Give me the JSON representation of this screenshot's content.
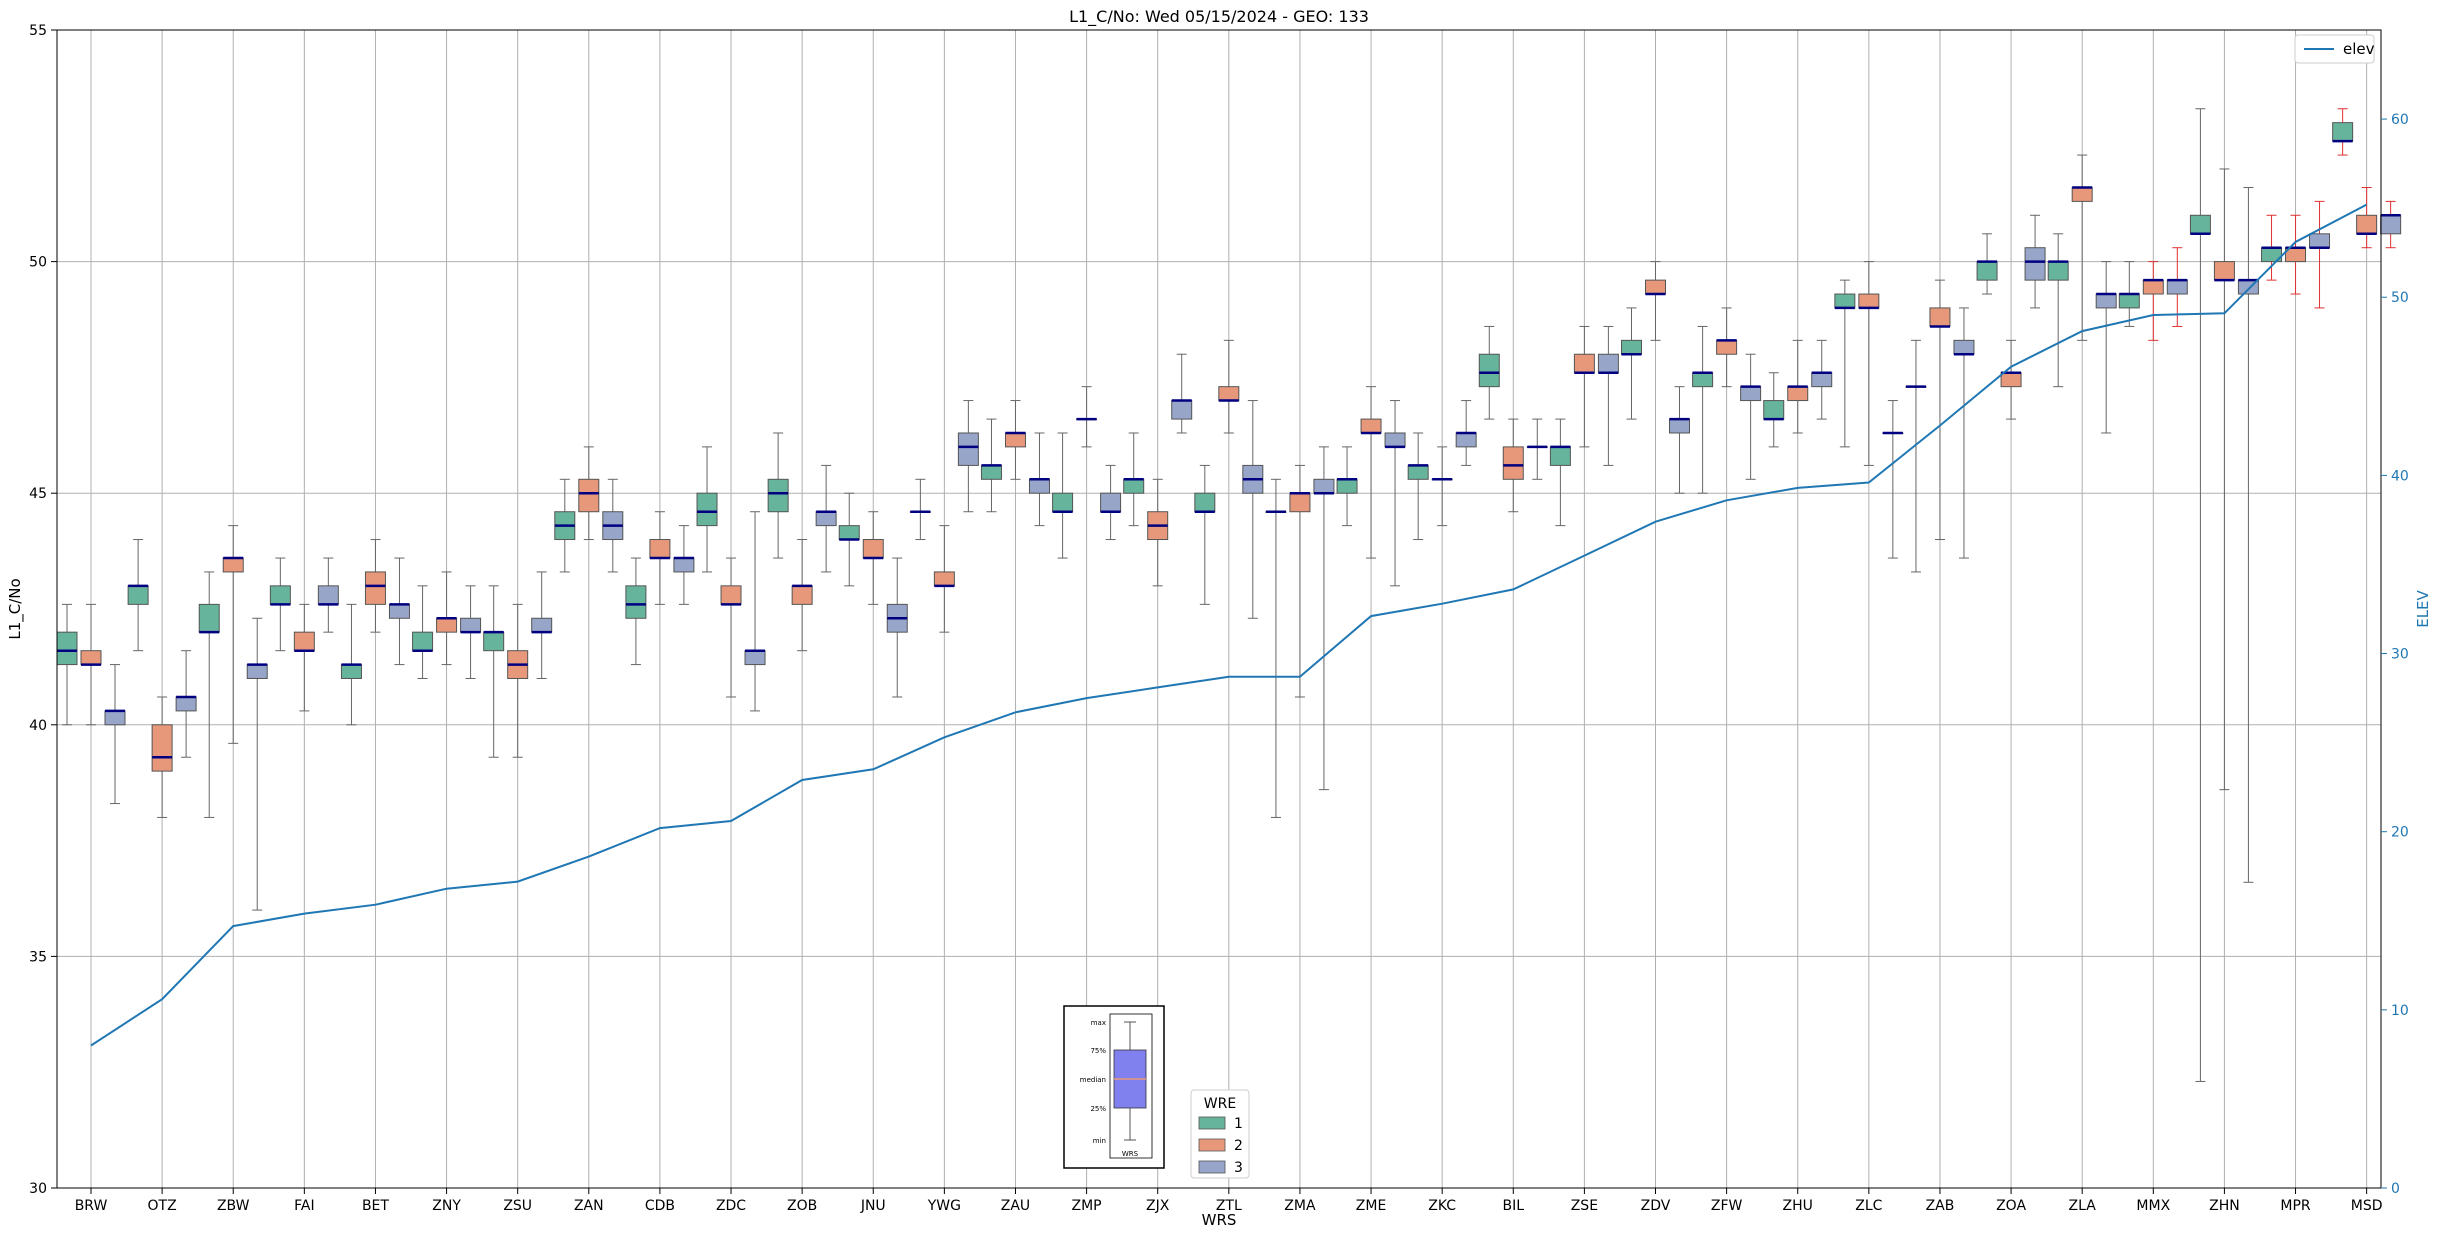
{
  "chart_data": {
    "type": "box",
    "title": "L1_C/No: Wed 05/15/2024 - GEO: 133",
    "xlabel": "WRS",
    "ylabel": "L1_C/No",
    "y2label": "ELEV",
    "ylim": [
      30,
      55
    ],
    "y2lim": [
      0,
      65
    ],
    "yticks": [
      "30",
      "35",
      "40",
      "45",
      "50",
      "55"
    ],
    "y2ticks": [
      "0",
      "10",
      "20",
      "30",
      "40",
      "50",
      "60"
    ],
    "grid": true,
    "categories": [
      "BRW",
      "OTZ",
      "ZBW",
      "FAI",
      "BET",
      "ZNY",
      "ZSU",
      "ZAN",
      "CDB",
      "ZDC",
      "ZOB",
      "JNU",
      "YWG",
      "ZAU",
      "ZMP",
      "ZJX",
      "ZTL",
      "ZMA",
      "ZME",
      "ZKC",
      "BIL",
      "ZSE",
      "ZDV",
      "ZFW",
      "ZHU",
      "ZLC",
      "ZAB",
      "ZOA",
      "ZLA",
      "MMX",
      "ZHN",
      "MPR",
      "MSD"
    ],
    "legend_title": "WRE",
    "legend_position": "bottom-center",
    "series": [
      {
        "name": "1",
        "color": "#66b49b"
      },
      {
        "name": "2",
        "color": "#e8987a"
      },
      {
        "name": "3",
        "color": "#97a5c9"
      }
    ],
    "boxes": [
      {
        "wrs": "BRW",
        "wre": 1,
        "min": 40.0,
        "q1": 41.3,
        "median": 41.6,
        "q3": 42.0,
        "max": 42.6
      },
      {
        "wrs": "BRW",
        "wre": 2,
        "min": 40.0,
        "q1": 41.3,
        "median": 41.3,
        "q3": 41.6,
        "max": 42.6
      },
      {
        "wrs": "BRW",
        "wre": 3,
        "min": 38.3,
        "q1": 40.0,
        "median": 40.3,
        "q3": 40.3,
        "max": 41.3
      },
      {
        "wrs": "OTZ",
        "wre": 1,
        "min": 41.6,
        "q1": 42.6,
        "median": 43.0,
        "q3": 43.0,
        "max": 44.0
      },
      {
        "wrs": "OTZ",
        "wre": 2,
        "min": 38.0,
        "q1": 39.0,
        "median": 39.3,
        "q3": 40.0,
        "max": 40.6
      },
      {
        "wrs": "OTZ",
        "wre": 3,
        "min": 39.3,
        "q1": 40.3,
        "median": 40.6,
        "q3": 40.6,
        "max": 41.6
      },
      {
        "wrs": "ZBW",
        "wre": 1,
        "min": 38.0,
        "q1": 42.0,
        "median": 42.0,
        "q3": 42.6,
        "max": 43.3
      },
      {
        "wrs": "ZBW",
        "wre": 2,
        "min": 39.6,
        "q1": 43.3,
        "median": 43.6,
        "q3": 43.6,
        "max": 44.3
      },
      {
        "wrs": "ZBW",
        "wre": 3,
        "min": 36.0,
        "q1": 41.0,
        "median": 41.3,
        "q3": 41.3,
        "max": 42.3
      },
      {
        "wrs": "FAI",
        "wre": 1,
        "min": 41.6,
        "q1": 42.6,
        "median": 42.6,
        "q3": 43.0,
        "max": 43.6
      },
      {
        "wrs": "FAI",
        "wre": 2,
        "min": 40.3,
        "q1": 41.6,
        "median": 41.6,
        "q3": 42.0,
        "max": 42.6
      },
      {
        "wrs": "FAI",
        "wre": 3,
        "min": 42.0,
        "q1": 42.6,
        "median": 42.6,
        "q3": 43.0,
        "max": 43.6
      },
      {
        "wrs": "BET",
        "wre": 1,
        "min": 40.0,
        "q1": 41.0,
        "median": 41.3,
        "q3": 41.3,
        "max": 42.6
      },
      {
        "wrs": "BET",
        "wre": 2,
        "min": 42.0,
        "q1": 42.6,
        "median": 43.0,
        "q3": 43.3,
        "max": 44.0
      },
      {
        "wrs": "BET",
        "wre": 3,
        "min": 41.3,
        "q1": 42.3,
        "median": 42.6,
        "q3": 42.6,
        "max": 43.6
      },
      {
        "wrs": "ZNY",
        "wre": 1,
        "min": 41.0,
        "q1": 41.6,
        "median": 41.6,
        "q3": 42.0,
        "max": 43.0
      },
      {
        "wrs": "ZNY",
        "wre": 2,
        "min": 41.3,
        "q1": 42.0,
        "median": 42.3,
        "q3": 42.3,
        "max": 43.3
      },
      {
        "wrs": "ZNY",
        "wre": 3,
        "min": 41.0,
        "q1": 42.0,
        "median": 42.0,
        "q3": 42.3,
        "max": 43.0
      },
      {
        "wrs": "ZSU",
        "wre": 1,
        "min": 39.3,
        "q1": 41.6,
        "median": 42.0,
        "q3": 42.0,
        "max": 43.0
      },
      {
        "wrs": "ZSU",
        "wre": 2,
        "min": 39.3,
        "q1": 41.0,
        "median": 41.3,
        "q3": 41.6,
        "max": 42.6
      },
      {
        "wrs": "ZSU",
        "wre": 3,
        "min": 41.0,
        "q1": 42.0,
        "median": 42.0,
        "q3": 42.3,
        "max": 43.3
      },
      {
        "wrs": "ZAN",
        "wre": 1,
        "min": 43.3,
        "q1": 44.0,
        "median": 44.3,
        "q3": 44.6,
        "max": 45.3
      },
      {
        "wrs": "ZAN",
        "wre": 2,
        "min": 44.0,
        "q1": 44.6,
        "median": 45.0,
        "q3": 45.3,
        "max": 46.0
      },
      {
        "wrs": "ZAN",
        "wre": 3,
        "min": 43.3,
        "q1": 44.0,
        "median": 44.3,
        "q3": 44.6,
        "max": 45.3
      },
      {
        "wrs": "CDB",
        "wre": 1,
        "min": 41.3,
        "q1": 42.3,
        "median": 42.6,
        "q3": 43.0,
        "max": 43.6
      },
      {
        "wrs": "CDB",
        "wre": 2,
        "min": 42.6,
        "q1": 43.6,
        "median": 43.6,
        "q3": 44.0,
        "max": 44.6
      },
      {
        "wrs": "CDB",
        "wre": 3,
        "min": 42.6,
        "q1": 43.3,
        "median": 43.6,
        "q3": 43.6,
        "max": 44.3
      },
      {
        "wrs": "ZDC",
        "wre": 1,
        "min": 43.3,
        "q1": 44.3,
        "median": 44.6,
        "q3": 45.0,
        "max": 46.0
      },
      {
        "wrs": "ZDC",
        "wre": 2,
        "min": 40.6,
        "q1": 42.6,
        "median": 42.6,
        "q3": 43.0,
        "max": 43.6
      },
      {
        "wrs": "ZDC",
        "wre": 3,
        "min": 40.3,
        "q1": 41.3,
        "median": 41.6,
        "q3": 41.6,
        "max": 44.6
      },
      {
        "wrs": "ZOB",
        "wre": 1,
        "min": 43.6,
        "q1": 44.6,
        "median": 45.0,
        "q3": 45.3,
        "max": 46.3
      },
      {
        "wrs": "ZOB",
        "wre": 2,
        "min": 41.6,
        "q1": 42.6,
        "median": 43.0,
        "q3": 43.0,
        "max": 44.0
      },
      {
        "wrs": "ZOB",
        "wre": 3,
        "min": 43.3,
        "q1": 44.3,
        "median": 44.6,
        "q3": 44.6,
        "max": 45.6
      },
      {
        "wrs": "JNU",
        "wre": 1,
        "min": 43.0,
        "q1": 44.0,
        "median": 44.0,
        "q3": 44.3,
        "max": 45.0
      },
      {
        "wrs": "JNU",
        "wre": 2,
        "min": 42.6,
        "q1": 43.6,
        "median": 43.6,
        "q3": 44.0,
        "max": 44.6
      },
      {
        "wrs": "JNU",
        "wre": 3,
        "min": 40.6,
        "q1": 42.0,
        "median": 42.3,
        "q3": 42.6,
        "max": 43.6
      },
      {
        "wrs": "YWG",
        "wre": 1,
        "min": 44.0,
        "q1": 44.6,
        "median": 44.6,
        "q3": 44.6,
        "max": 45.3
      },
      {
        "wrs": "YWG",
        "wre": 2,
        "min": 42.0,
        "q1": 43.0,
        "median": 43.0,
        "q3": 43.3,
        "max": 44.3
      },
      {
        "wrs": "YWG",
        "wre": 3,
        "min": 44.6,
        "q1": 45.6,
        "median": 46.0,
        "q3": 46.3,
        "max": 47.0
      },
      {
        "wrs": "ZAU",
        "wre": 1,
        "min": 44.6,
        "q1": 45.3,
        "median": 45.6,
        "q3": 45.6,
        "max": 46.6
      },
      {
        "wrs": "ZAU",
        "wre": 2,
        "min": 45.3,
        "q1": 46.0,
        "median": 46.3,
        "q3": 46.3,
        "max": 47.0
      },
      {
        "wrs": "ZAU",
        "wre": 3,
        "min": 44.3,
        "q1": 45.0,
        "median": 45.3,
        "q3": 45.3,
        "max": 46.3
      },
      {
        "wrs": "ZMP",
        "wre": 1,
        "min": 43.6,
        "q1": 44.6,
        "median": 44.6,
        "q3": 45.0,
        "max": 46.3
      },
      {
        "wrs": "ZMP",
        "wre": 2,
        "min": 46.0,
        "q1": 46.6,
        "median": 46.6,
        "q3": 46.6,
        "max": 47.3
      },
      {
        "wrs": "ZMP",
        "wre": 3,
        "min": 44.0,
        "q1": 44.6,
        "median": 44.6,
        "q3": 45.0,
        "max": 45.6
      },
      {
        "wrs": "ZJX",
        "wre": 1,
        "min": 44.3,
        "q1": 45.0,
        "median": 45.3,
        "q3": 45.3,
        "max": 46.3
      },
      {
        "wrs": "ZJX",
        "wre": 2,
        "min": 43.0,
        "q1": 44.0,
        "median": 44.3,
        "q3": 44.6,
        "max": 45.3
      },
      {
        "wrs": "ZJX",
        "wre": 3,
        "min": 46.3,
        "q1": 46.6,
        "median": 47.0,
        "q3": 47.0,
        "max": 48.0
      },
      {
        "wrs": "ZTL",
        "wre": 1,
        "min": 42.6,
        "q1": 44.6,
        "median": 44.6,
        "q3": 45.0,
        "max": 45.6
      },
      {
        "wrs": "ZTL",
        "wre": 2,
        "min": 46.3,
        "q1": 47.0,
        "median": 47.0,
        "q3": 47.3,
        "max": 48.3
      },
      {
        "wrs": "ZTL",
        "wre": 3,
        "min": 42.3,
        "q1": 45.0,
        "median": 45.3,
        "q3": 45.6,
        "max": 47.0
      },
      {
        "wrs": "ZMA",
        "wre": 1,
        "min": 38.0,
        "q1": 44.6,
        "median": 44.6,
        "q3": 44.6,
        "max": 45.3
      },
      {
        "wrs": "ZMA",
        "wre": 2,
        "min": 40.6,
        "q1": 44.6,
        "median": 45.0,
        "q3": 45.0,
        "max": 45.6
      },
      {
        "wrs": "ZMA",
        "wre": 3,
        "min": 38.6,
        "q1": 45.0,
        "median": 45.0,
        "q3": 45.3,
        "max": 46.0
      },
      {
        "wrs": "ZME",
        "wre": 1,
        "min": 44.3,
        "q1": 45.0,
        "median": 45.3,
        "q3": 45.3,
        "max": 46.0
      },
      {
        "wrs": "ZME",
        "wre": 2,
        "min": 43.6,
        "q1": 46.3,
        "median": 46.3,
        "q3": 46.6,
        "max": 47.3
      },
      {
        "wrs": "ZME",
        "wre": 3,
        "min": 43.0,
        "q1": 46.0,
        "median": 46.0,
        "q3": 46.3,
        "max": 47.0
      },
      {
        "wrs": "ZKC",
        "wre": 1,
        "min": 44.0,
        "q1": 45.3,
        "median": 45.6,
        "q3": 45.6,
        "max": 46.3
      },
      {
        "wrs": "ZKC",
        "wre": 2,
        "min": 44.3,
        "q1": 45.3,
        "median": 45.3,
        "q3": 45.3,
        "max": 46.0
      },
      {
        "wrs": "ZKC",
        "wre": 3,
        "min": 45.6,
        "q1": 46.0,
        "median": 46.3,
        "q3": 46.3,
        "max": 47.0
      },
      {
        "wrs": "BIL",
        "wre": 1,
        "min": 46.6,
        "q1": 47.3,
        "median": 47.6,
        "q3": 48.0,
        "max": 48.6
      },
      {
        "wrs": "BIL",
        "wre": 2,
        "min": 44.6,
        "q1": 45.3,
        "median": 45.6,
        "q3": 46.0,
        "max": 46.6
      },
      {
        "wrs": "BIL",
        "wre": 3,
        "min": 45.3,
        "q1": 46.0,
        "median": 46.0,
        "q3": 46.0,
        "max": 46.6
      },
      {
        "wrs": "ZSE",
        "wre": 1,
        "min": 44.3,
        "q1": 45.6,
        "median": 46.0,
        "q3": 46.0,
        "max": 46.6
      },
      {
        "wrs": "ZSE",
        "wre": 2,
        "min": 46.0,
        "q1": 47.6,
        "median": 47.6,
        "q3": 48.0,
        "max": 48.6
      },
      {
        "wrs": "ZSE",
        "wre": 3,
        "min": 45.6,
        "q1": 47.6,
        "median": 47.6,
        "q3": 48.0,
        "max": 48.6
      },
      {
        "wrs": "ZDV",
        "wre": 1,
        "min": 46.6,
        "q1": 48.0,
        "median": 48.0,
        "q3": 48.3,
        "max": 49.0
      },
      {
        "wrs": "ZDV",
        "wre": 2,
        "min": 48.3,
        "q1": 49.3,
        "median": 49.3,
        "q3": 49.6,
        "max": 50.0
      },
      {
        "wrs": "ZDV",
        "wre": 3,
        "min": 45.0,
        "q1": 46.3,
        "median": 46.6,
        "q3": 46.6,
        "max": 47.3
      },
      {
        "wrs": "ZFW",
        "wre": 1,
        "min": 45.0,
        "q1": 47.3,
        "median": 47.6,
        "q3": 47.6,
        "max": 48.6
      },
      {
        "wrs": "ZFW",
        "wre": 2,
        "min": 47.3,
        "q1": 48.0,
        "median": 48.3,
        "q3": 48.3,
        "max": 49.0
      },
      {
        "wrs": "ZFW",
        "wre": 3,
        "min": 45.3,
        "q1": 47.0,
        "median": 47.3,
        "q3": 47.3,
        "max": 48.0
      },
      {
        "wrs": "ZHU",
        "wre": 1,
        "min": 46.0,
        "q1": 46.6,
        "median": 46.6,
        "q3": 47.0,
        "max": 47.6
      },
      {
        "wrs": "ZHU",
        "wre": 2,
        "min": 46.3,
        "q1": 47.0,
        "median": 47.3,
        "q3": 47.3,
        "max": 48.3
      },
      {
        "wrs": "ZHU",
        "wre": 3,
        "min": 46.6,
        "q1": 47.3,
        "median": 47.6,
        "q3": 47.6,
        "max": 48.3
      },
      {
        "wrs": "ZLC",
        "wre": 1,
        "min": 46.0,
        "q1": 49.0,
        "median": 49.0,
        "q3": 49.3,
        "max": 49.6
      },
      {
        "wrs": "ZLC",
        "wre": 2,
        "min": 45.6,
        "q1": 49.0,
        "median": 49.0,
        "q3": 49.3,
        "max": 50.0
      },
      {
        "wrs": "ZLC",
        "wre": 3,
        "min": 43.6,
        "q1": 46.3,
        "median": 46.3,
        "q3": 46.3,
        "max": 47.0
      },
      {
        "wrs": "ZAB",
        "wre": 1,
        "min": 43.3,
        "q1": 47.3,
        "median": 47.3,
        "q3": 47.3,
        "max": 48.3
      },
      {
        "wrs": "ZAB",
        "wre": 2,
        "min": 44.0,
        "q1": 48.6,
        "median": 48.6,
        "q3": 49.0,
        "max": 49.6
      },
      {
        "wrs": "ZAB",
        "wre": 3,
        "min": 43.6,
        "q1": 48.0,
        "median": 48.0,
        "q3": 48.3,
        "max": 49.0
      },
      {
        "wrs": "ZOA",
        "wre": 1,
        "min": 49.3,
        "q1": 49.6,
        "median": 50.0,
        "q3": 50.0,
        "max": 50.6
      },
      {
        "wrs": "ZOA",
        "wre": 2,
        "min": 46.6,
        "q1": 47.3,
        "median": 47.6,
        "q3": 47.6,
        "max": 48.3
      },
      {
        "wrs": "ZOA",
        "wre": 3,
        "min": 49.0,
        "q1": 49.6,
        "median": 50.0,
        "q3": 50.3,
        "max": 51.0
      },
      {
        "wrs": "ZLA",
        "wre": 1,
        "min": 47.3,
        "q1": 49.6,
        "median": 50.0,
        "q3": 50.0,
        "max": 50.6
      },
      {
        "wrs": "ZLA",
        "wre": 2,
        "min": 48.3,
        "q1": 51.3,
        "median": 51.6,
        "q3": 51.6,
        "max": 52.3
      },
      {
        "wrs": "ZLA",
        "wre": 3,
        "min": 46.3,
        "q1": 49.0,
        "median": 49.3,
        "q3": 49.3,
        "max": 50.0
      },
      {
        "wrs": "MMX",
        "wre": 1,
        "min": 48.6,
        "q1": 49.0,
        "median": 49.3,
        "q3": 49.3,
        "max": 50.0
      },
      {
        "wrs": "MMX",
        "wre": 2,
        "min": 48.3,
        "q1": 49.3,
        "median": 49.6,
        "q3": 49.6,
        "max": 50.0
      },
      {
        "wrs": "MMX",
        "wre": 3,
        "min": 48.6,
        "q1": 49.3,
        "median": 49.6,
        "q3": 49.6,
        "max": 50.3
      },
      {
        "wrs": "ZHN",
        "wre": 1,
        "min": 32.3,
        "q1": 50.6,
        "median": 50.6,
        "q3": 51.0,
        "max": 53.3
      },
      {
        "wrs": "ZHN",
        "wre": 2,
        "min": 38.6,
        "q1": 49.6,
        "median": 49.6,
        "q3": 50.0,
        "max": 52.0
      },
      {
        "wrs": "ZHN",
        "wre": 3,
        "min": 36.6,
        "q1": 49.3,
        "median": 49.6,
        "q3": 49.6,
        "max": 51.6
      },
      {
        "wrs": "MPR",
        "wre": 1,
        "min": 49.6,
        "q1": 50.0,
        "median": 50.3,
        "q3": 50.3,
        "max": 51.0
      },
      {
        "wrs": "MPR",
        "wre": 2,
        "min": 49.3,
        "q1": 50.0,
        "median": 50.3,
        "q3": 50.3,
        "max": 51.0
      },
      {
        "wrs": "MPR",
        "wre": 3,
        "min": 49.0,
        "q1": 50.3,
        "median": 50.3,
        "q3": 50.6,
        "max": 51.3
      },
      {
        "wrs": "MSD",
        "wre": 1,
        "min": 52.3,
        "q1": 52.6,
        "median": 52.6,
        "q3": 53.0,
        "max": 53.3
      },
      {
        "wrs": "MSD",
        "wre": 2,
        "min": 50.3,
        "q1": 50.6,
        "median": 50.6,
        "q3": 51.0,
        "max": 51.6
      },
      {
        "wrs": "MSD",
        "wre": 3,
        "min": 50.3,
        "q1": 50.6,
        "median": 51.0,
        "q3": 51.0,
        "max": 51.3
      }
    ],
    "line": {
      "name": "elev",
      "color": "#1f77b4",
      "values": [
        8.0,
        10.6,
        14.7,
        15.4,
        15.9,
        16.8,
        17.2,
        18.6,
        20.2,
        20.6,
        22.9,
        23.5,
        25.3,
        26.7,
        27.5,
        28.1,
        28.7,
        28.7,
        32.1,
        32.8,
        33.6,
        35.5,
        37.4,
        38.6,
        39.3,
        39.6,
        42.8,
        46.1,
        48.1,
        49.0,
        49.1,
        53.1,
        55.2
      ]
    },
    "inset_legend": {
      "labels": [
        "max",
        "75%",
        "median",
        "25%",
        "min"
      ],
      "xlabel": "WRS"
    }
  }
}
